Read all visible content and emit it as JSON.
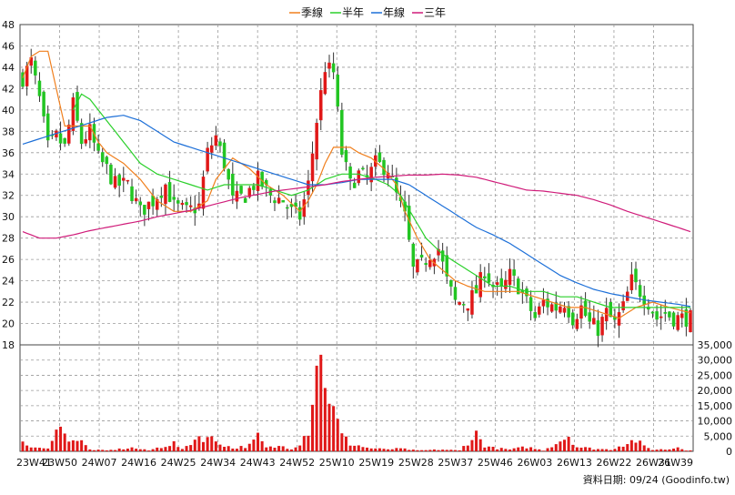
{
  "legend": [
    {
      "label": "季線",
      "color": "#f07f1d"
    },
    {
      "label": "半年",
      "color": "#2ad02a"
    },
    {
      "label": "年線",
      "color": "#1c6fd8"
    },
    {
      "label": "三年",
      "color": "#d01c7a"
    }
  ],
  "colors": {
    "up": "#e01818",
    "down": "#22c522",
    "wick": "#333333",
    "grid": "#9a9a9a",
    "volume": "#e01818"
  },
  "footer": "資料日期: 09/24  (Goodinfo.tw)",
  "chart_data": {
    "type": "candlestick",
    "x_ticks": [
      "23W41",
      "23W50",
      "24W07",
      "24W16",
      "24W25",
      "24W34",
      "24W43",
      "24W52",
      "25W10",
      "25W19",
      "25W28",
      "25W37",
      "25W46",
      "26W03",
      "26W13",
      "26W22",
      "26W31",
      "26W39"
    ],
    "price_axis": {
      "ticks": [
        18,
        20,
        22,
        24,
        26,
        28,
        30,
        32,
        34,
        36,
        38,
        40,
        42,
        44,
        46,
        48
      ],
      "min": 18,
      "max": 48
    },
    "volume_axis": {
      "ticks": [
        "0",
        "5,000",
        "10,000",
        "15,000",
        "20,000",
        "25,000",
        "30,000",
        "35,000"
      ],
      "min": 0,
      "max": 35000
    },
    "grid": true,
    "legend_position": "top-center",
    "price_anchors": [
      [
        0,
        43.0
      ],
      [
        2,
        44.5
      ],
      [
        4,
        41.0
      ],
      [
        6,
        36.5
      ],
      [
        8,
        37.5
      ],
      [
        10,
        36.5
      ],
      [
        12,
        40.5
      ],
      [
        14,
        37.0
      ],
      [
        16,
        38.0
      ],
      [
        18,
        35.5
      ],
      [
        20,
        34.5
      ],
      [
        22,
        33.0
      ],
      [
        25,
        33.0
      ],
      [
        28,
        30.5
      ],
      [
        31,
        31.5
      ],
      [
        34,
        33.0
      ],
      [
        36,
        31.0
      ],
      [
        39,
        30.5
      ],
      [
        42,
        31.0
      ],
      [
        44,
        36.0
      ],
      [
        46,
        37.5
      ],
      [
        48,
        35.0
      ],
      [
        50,
        31.5
      ],
      [
        53,
        32.0
      ],
      [
        56,
        33.5
      ],
      [
        59,
        32.0
      ],
      [
        62,
        31.5
      ],
      [
        64,
        30.5
      ],
      [
        66,
        30.0
      ],
      [
        68,
        33.0
      ],
      [
        70,
        39.0
      ],
      [
        72,
        44.0
      ],
      [
        74,
        43.5
      ],
      [
        76,
        36.0
      ],
      [
        78,
        33.0
      ],
      [
        80,
        34.0
      ],
      [
        82,
        33.5
      ],
      [
        84,
        35.0
      ],
      [
        87,
        34.5
      ],
      [
        89,
        32.0
      ],
      [
        91,
        30.0
      ],
      [
        93,
        25.0
      ],
      [
        95,
        25.5
      ],
      [
        97,
        26.5
      ],
      [
        99,
        27.0
      ],
      [
        101,
        24.0
      ],
      [
        103,
        22.0
      ],
      [
        106,
        22.0
      ],
      [
        108,
        23.0
      ],
      [
        110,
        25.0
      ],
      [
        112,
        23.5
      ],
      [
        114,
        23.0
      ],
      [
        116,
        24.5
      ],
      [
        118,
        23.5
      ],
      [
        120,
        22.0
      ],
      [
        122,
        20.5
      ],
      [
        124,
        22.0
      ],
      [
        127,
        21.5
      ],
      [
        129,
        22.0
      ],
      [
        131,
        20.5
      ],
      [
        133,
        21.5
      ],
      [
        135,
        20.0
      ],
      [
        137,
        19.5
      ],
      [
        139,
        21.0
      ],
      [
        141,
        20.0
      ],
      [
        143,
        21.5
      ],
      [
        145,
        24.0
      ],
      [
        147,
        23.0
      ],
      [
        149,
        22.0
      ],
      [
        151,
        20.5
      ],
      [
        153,
        21.0
      ],
      [
        155,
        20.5
      ],
      [
        157,
        20.5
      ],
      [
        159,
        20.5
      ]
    ],
    "volume_anchors": [
      [
        0,
        2500
      ],
      [
        2,
        1600
      ],
      [
        4,
        1000
      ],
      [
        6,
        800
      ],
      [
        8,
        10500
      ],
      [
        10,
        5200
      ],
      [
        12,
        4500
      ],
      [
        14,
        3200
      ],
      [
        16,
        600
      ],
      [
        20,
        300
      ],
      [
        26,
        1200
      ],
      [
        30,
        300
      ],
      [
        34,
        2000
      ],
      [
        36,
        2800
      ],
      [
        38,
        600
      ],
      [
        40,
        3000
      ],
      [
        42,
        5200
      ],
      [
        44,
        4800
      ],
      [
        46,
        3600
      ],
      [
        50,
        1000
      ],
      [
        54,
        2000
      ],
      [
        56,
        5000
      ],
      [
        58,
        1200
      ],
      [
        62,
        1800
      ],
      [
        64,
        900
      ],
      [
        66,
        3000
      ],
      [
        68,
        7500
      ],
      [
        70,
        33000
      ],
      [
        72,
        27000
      ],
      [
        74,
        13500
      ],
      [
        76,
        5500
      ],
      [
        78,
        2600
      ],
      [
        80,
        2000
      ],
      [
        82,
        1200
      ],
      [
        86,
        700
      ],
      [
        90,
        900
      ],
      [
        94,
        300
      ],
      [
        100,
        600
      ],
      [
        104,
        300
      ],
      [
        108,
        6000
      ],
      [
        110,
        2000
      ],
      [
        112,
        1200
      ],
      [
        116,
        600
      ],
      [
        120,
        1500
      ],
      [
        124,
        300
      ],
      [
        130,
        5500
      ],
      [
        132,
        1500
      ],
      [
        136,
        900
      ],
      [
        140,
        600
      ],
      [
        144,
        3000
      ],
      [
        146,
        3900
      ],
      [
        148,
        1600
      ],
      [
        150,
        600
      ],
      [
        154,
        700
      ],
      [
        156,
        1500
      ],
      [
        158,
        400
      ]
    ],
    "ma_series": [
      {
        "name": "季線",
        "anchors": [
          [
            0,
            43.0
          ],
          [
            2,
            45.0
          ],
          [
            4,
            45.5
          ],
          [
            6,
            45.5
          ],
          [
            8,
            42.0
          ],
          [
            10,
            38.5
          ],
          [
            12,
            38.5
          ],
          [
            14,
            38.5
          ],
          [
            16,
            38.5
          ],
          [
            18,
            37.0
          ],
          [
            20,
            36.0
          ],
          [
            24,
            35.0
          ],
          [
            28,
            33.5
          ],
          [
            32,
            31.5
          ],
          [
            36,
            30.5
          ],
          [
            40,
            30.5
          ],
          [
            44,
            31.5
          ],
          [
            46,
            33.5
          ],
          [
            50,
            35.5
          ],
          [
            54,
            34.5
          ],
          [
            58,
            33.0
          ],
          [
            62,
            32.0
          ],
          [
            66,
            30.5
          ],
          [
            68,
            31.5
          ],
          [
            70,
            33.0
          ],
          [
            72,
            35.0
          ],
          [
            74,
            36.5
          ],
          [
            76,
            36.5
          ],
          [
            78,
            36.5
          ],
          [
            80,
            36.0
          ],
          [
            83,
            35.5
          ],
          [
            86,
            34.5
          ],
          [
            89,
            33.0
          ],
          [
            91,
            30.5
          ],
          [
            94,
            28.0
          ],
          [
            97,
            26.0
          ],
          [
            100,
            25.0
          ],
          [
            103,
            24.0
          ],
          [
            106,
            23.5
          ],
          [
            110,
            23.0
          ],
          [
            114,
            23.0
          ],
          [
            118,
            23.0
          ],
          [
            122,
            22.5
          ],
          [
            126,
            22.0
          ],
          [
            130,
            21.5
          ],
          [
            134,
            21.5
          ],
          [
            138,
            21.0
          ],
          [
            142,
            20.5
          ],
          [
            146,
            21.5
          ],
          [
            150,
            22.0
          ],
          [
            154,
            21.5
          ],
          [
            159,
            21.0
          ]
        ]
      },
      {
        "name": "半年",
        "anchors": [
          [
            12,
            40.0
          ],
          [
            14,
            41.5
          ],
          [
            16,
            41.0
          ],
          [
            18,
            40.0
          ],
          [
            20,
            39.0
          ],
          [
            24,
            37.0
          ],
          [
            28,
            35.0
          ],
          [
            32,
            34.0
          ],
          [
            36,
            33.5
          ],
          [
            40,
            33.0
          ],
          [
            44,
            32.5
          ],
          [
            48,
            33.0
          ],
          [
            52,
            33.0
          ],
          [
            56,
            33.0
          ],
          [
            60,
            32.5
          ],
          [
            64,
            32.0
          ],
          [
            68,
            32.5
          ],
          [
            72,
            33.5
          ],
          [
            76,
            34.0
          ],
          [
            80,
            34.0
          ],
          [
            84,
            33.5
          ],
          [
            87,
            33.0
          ],
          [
            90,
            32.0
          ],
          [
            93,
            30.0
          ],
          [
            96,
            28.0
          ],
          [
            100,
            26.5
          ],
          [
            104,
            25.5
          ],
          [
            108,
            24.5
          ],
          [
            112,
            23.5
          ],
          [
            116,
            23.5
          ],
          [
            120,
            23.0
          ],
          [
            124,
            23.0
          ],
          [
            128,
            22.5
          ],
          [
            132,
            22.5
          ],
          [
            136,
            22.0
          ],
          [
            140,
            21.5
          ],
          [
            144,
            21.5
          ],
          [
            148,
            21.5
          ],
          [
            152,
            21.5
          ],
          [
            156,
            21.5
          ],
          [
            159,
            21.5
          ]
        ]
      },
      {
        "name": "年線",
        "anchors": [
          [
            0,
            36.8
          ],
          [
            4,
            37.3
          ],
          [
            8,
            37.8
          ],
          [
            12,
            38.3
          ],
          [
            16,
            38.8
          ],
          [
            20,
            39.3
          ],
          [
            24,
            39.5
          ],
          [
            28,
            39.0
          ],
          [
            32,
            38.0
          ],
          [
            36,
            37.0
          ],
          [
            40,
            36.5
          ],
          [
            44,
            36.0
          ],
          [
            48,
            35.5
          ],
          [
            52,
            35.0
          ],
          [
            56,
            34.5
          ],
          [
            60,
            34.0
          ],
          [
            64,
            33.5
          ],
          [
            68,
            33.0
          ],
          [
            72,
            33.0
          ],
          [
            76,
            33.2
          ],
          [
            80,
            33.5
          ],
          [
            84,
            33.5
          ],
          [
            88,
            33.5
          ],
          [
            92,
            33.0
          ],
          [
            96,
            32.0
          ],
          [
            100,
            31.0
          ],
          [
            104,
            30.0
          ],
          [
            108,
            29.0
          ],
          [
            112,
            28.3
          ],
          [
            116,
            27.5
          ],
          [
            120,
            26.5
          ],
          [
            124,
            25.5
          ],
          [
            128,
            24.5
          ],
          [
            132,
            23.8
          ],
          [
            136,
            23.2
          ],
          [
            140,
            22.8
          ],
          [
            144,
            22.5
          ],
          [
            148,
            22.2
          ],
          [
            152,
            22.0
          ],
          [
            156,
            21.8
          ],
          [
            159,
            21.6
          ]
        ]
      },
      {
        "name": "三年",
        "anchors": [
          [
            0,
            28.6
          ],
          [
            4,
            28.0
          ],
          [
            8,
            28.0
          ],
          [
            12,
            28.3
          ],
          [
            16,
            28.7
          ],
          [
            20,
            29.0
          ],
          [
            24,
            29.3
          ],
          [
            28,
            29.6
          ],
          [
            32,
            30.0
          ],
          [
            36,
            30.3
          ],
          [
            40,
            30.6
          ],
          [
            44,
            31.0
          ],
          [
            48,
            31.4
          ],
          [
            52,
            31.8
          ],
          [
            56,
            32.1
          ],
          [
            60,
            32.4
          ],
          [
            64,
            32.6
          ],
          [
            68,
            32.8
          ],
          [
            72,
            33.0
          ],
          [
            76,
            33.3
          ],
          [
            80,
            33.5
          ],
          [
            84,
            33.7
          ],
          [
            88,
            33.8
          ],
          [
            92,
            33.9
          ],
          [
            96,
            33.9
          ],
          [
            100,
            34.0
          ],
          [
            104,
            33.9
          ],
          [
            108,
            33.7
          ],
          [
            112,
            33.3
          ],
          [
            116,
            32.9
          ],
          [
            120,
            32.5
          ],
          [
            124,
            32.4
          ],
          [
            128,
            32.2
          ],
          [
            132,
            32.0
          ],
          [
            136,
            31.6
          ],
          [
            140,
            31.1
          ],
          [
            144,
            30.5
          ],
          [
            148,
            30.0
          ],
          [
            152,
            29.5
          ],
          [
            156,
            29.0
          ],
          [
            159,
            28.6
          ]
        ]
      }
    ]
  }
}
